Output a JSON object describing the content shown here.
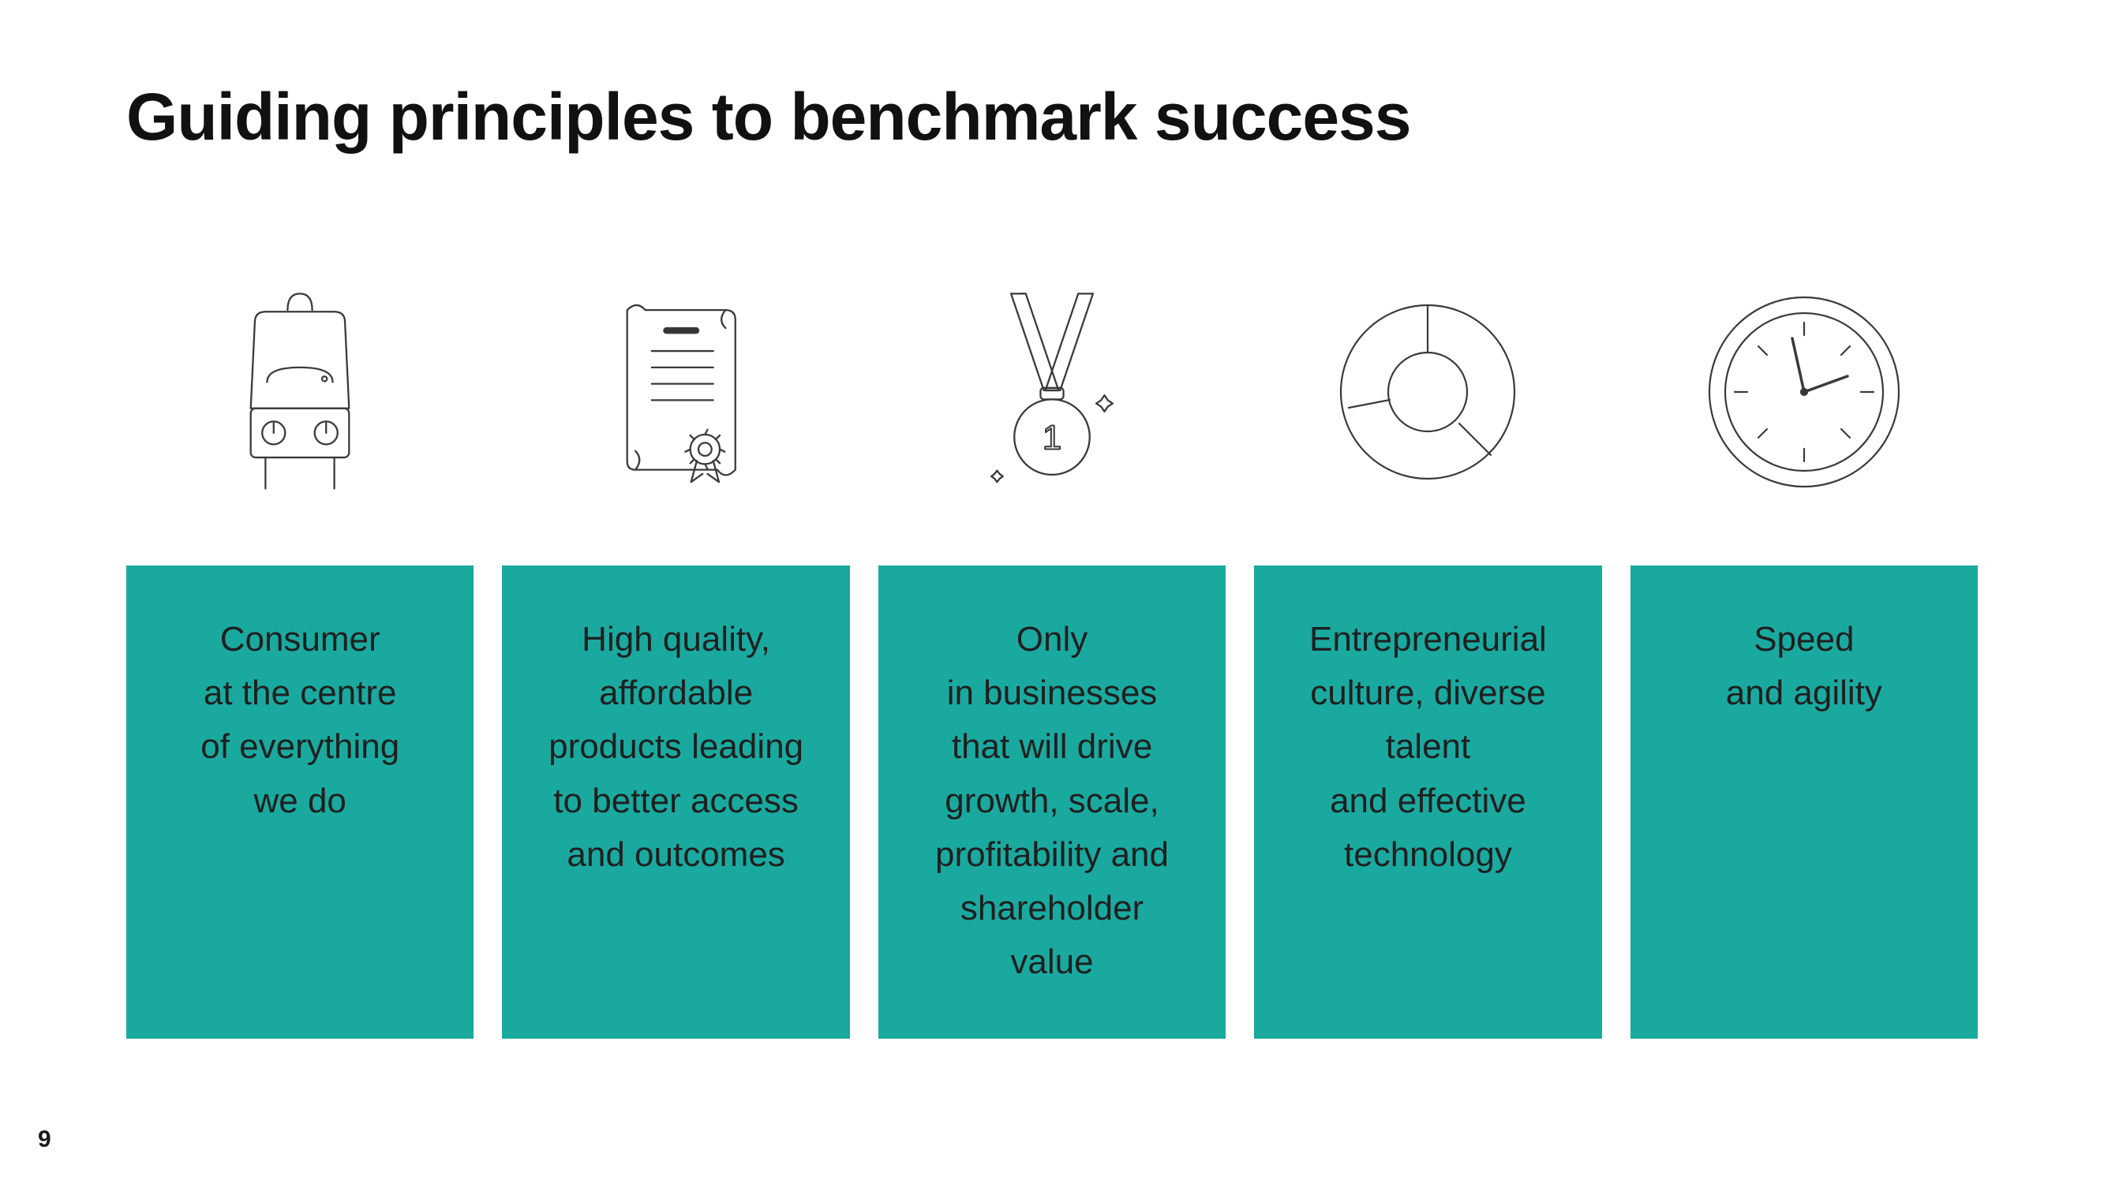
{
  "title": "Guiding principles to benchmark success",
  "page_number": "9",
  "card_bg": "#1aa99f",
  "card_text_color": "#1f1f1f",
  "icon_stroke": "#3a3a3a",
  "columns": [
    {
      "text": "Consumer\nat the centre\nof everything\nwe do"
    },
    {
      "text": "High quality,\naffordable\nproducts leading\nto better access\nand outcomes"
    },
    {
      "text": "Only\nin businesses\nthat will drive\ngrowth, scale,\nprofitability and\nshareholder\nvalue"
    },
    {
      "text": "Entrepreneurial\nculture, diverse\ntalent\nand effective\ntechnology"
    },
    {
      "text": "Speed\nand agility"
    }
  ]
}
